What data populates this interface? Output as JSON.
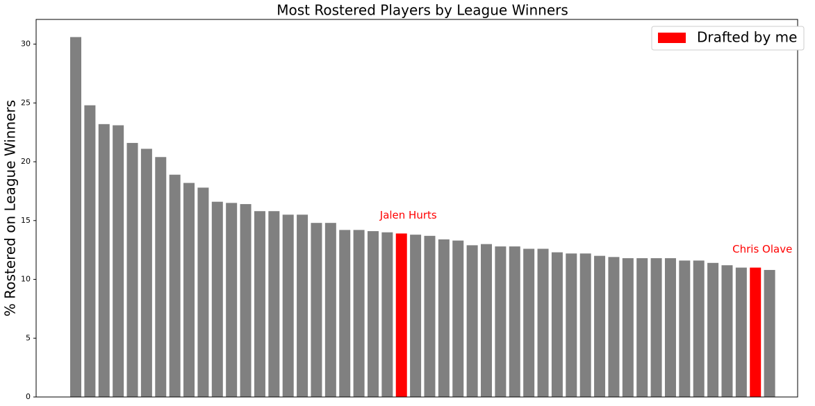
{
  "chart_data": {
    "type": "bar",
    "title": "Most Rostered Players by League Winners",
    "ylabel": "% Rostered on League Winners",
    "categories": [
      null,
      null,
      null,
      null,
      null,
      null,
      null,
      null,
      null,
      null,
      null,
      null,
      null,
      null,
      null,
      null,
      null,
      null,
      null,
      null,
      null,
      null,
      null,
      null,
      null,
      null,
      null,
      null,
      null,
      null,
      null,
      null,
      null,
      null,
      null,
      null,
      null,
      null,
      null,
      null,
      null,
      null,
      null,
      null,
      null,
      null,
      null,
      null,
      null,
      null
    ],
    "values": [
      30.6,
      24.8,
      23.2,
      23.1,
      21.6,
      21.1,
      20.4,
      18.9,
      18.2,
      17.8,
      16.6,
      16.5,
      16.4,
      15.8,
      15.8,
      15.5,
      15.5,
      14.8,
      14.8,
      14.2,
      14.2,
      14.1,
      14.0,
      13.9,
      13.8,
      13.7,
      13.4,
      13.3,
      12.9,
      13.0,
      12.8,
      12.8,
      12.6,
      12.6,
      12.3,
      12.2,
      12.2,
      12.0,
      11.9,
      11.8,
      11.8,
      11.8,
      11.8,
      11.6,
      11.6,
      11.4,
      11.2,
      11.0,
      11.0,
      10.8
    ],
    "colors": [
      "gray",
      "gray",
      "gray",
      "gray",
      "gray",
      "gray",
      "gray",
      "gray",
      "gray",
      "gray",
      "gray",
      "gray",
      "gray",
      "gray",
      "gray",
      "gray",
      "gray",
      "gray",
      "gray",
      "gray",
      "gray",
      "gray",
      "gray",
      "red",
      "gray",
      "gray",
      "gray",
      "gray",
      "gray",
      "gray",
      "gray",
      "gray",
      "gray",
      "gray",
      "gray",
      "gray",
      "gray",
      "gray",
      "gray",
      "gray",
      "gray",
      "gray",
      "gray",
      "gray",
      "gray",
      "gray",
      "gray",
      "gray",
      "red",
      "gray"
    ],
    "annotations": [
      {
        "text": "Jalen Hurts",
        "index": 23,
        "color": "red"
      },
      {
        "text": "Chris Olave",
        "index": 48,
        "color": "red"
      }
    ],
    "legend": {
      "label": "Drafted by me",
      "color": "red",
      "position": "upper right"
    },
    "ylim": [
      0,
      32.1
    ],
    "yticks": [
      0,
      5,
      10,
      15,
      20,
      25,
      30
    ]
  }
}
